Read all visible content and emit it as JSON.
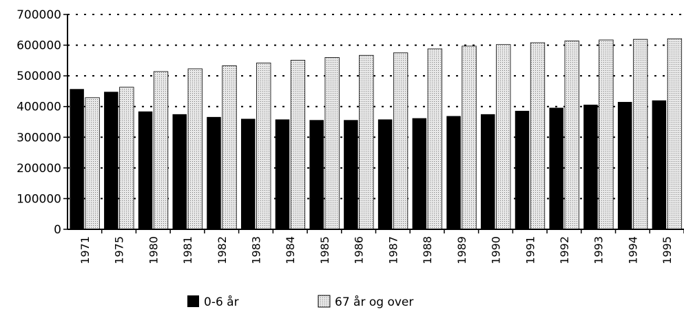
{
  "chart_data": {
    "type": "bar",
    "categories": [
      "1971",
      "1975",
      "1980",
      "1981",
      "1982",
      "1983",
      "1984",
      "1985",
      "1986",
      "1987",
      "1988",
      "1989",
      "1990",
      "1991",
      "1992",
      "1993",
      "1994",
      "1995"
    ],
    "series": [
      {
        "name": "0-6 år",
        "color": "#000000",
        "values": [
          457000,
          448000,
          384000,
          375000,
          366000,
          360000,
          358000,
          356000,
          356000,
          358000,
          362000,
          369000,
          375000,
          386000,
          396000,
          406000,
          415000,
          420000
        ]
      },
      {
        "name": "67 år og over",
        "color": "#d4d4d4",
        "values": [
          429000,
          463000,
          514000,
          523000,
          533000,
          542000,
          551000,
          560000,
          567000,
          575000,
          588000,
          597000,
          602000,
          608000,
          614000,
          617000,
          619000,
          621000
        ]
      }
    ],
    "ylim": [
      0,
      700000
    ],
    "yticks": [
      "0",
      "100000",
      "200000",
      "300000",
      "400000",
      "500000",
      "600000",
      "700000"
    ],
    "grid": "dashed-horizontal",
    "legend_position": "bottom"
  }
}
